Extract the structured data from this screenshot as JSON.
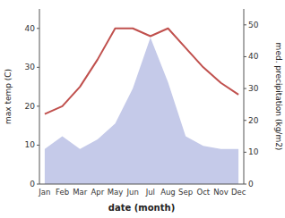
{
  "chart_data": {
    "type": "line",
    "xlabel": "date (month)",
    "ylabel": "max temp (C)",
    "y2label": "med. precipitation (kg/m2)",
    "categories": [
      "Jan",
      "Feb",
      "Mar",
      "Apr",
      "May",
      "Jun",
      "Jul",
      "Aug",
      "Sep",
      "Oct",
      "Nov",
      "Dec"
    ],
    "series": [
      {
        "type": "area",
        "axis": "y2",
        "color": "#c5cae9",
        "values": [
          11,
          15,
          11,
          14,
          19,
          30,
          46,
          32,
          15,
          12,
          11,
          11
        ]
      },
      {
        "type": "line",
        "color": "#c0504d",
        "values": [
          18,
          20,
          25,
          32,
          40,
          40,
          38,
          40,
          35,
          30,
          26,
          23
        ]
      }
    ],
    "ylim": [
      0,
      45
    ],
    "yticks": [
      0,
      10,
      20,
      30,
      40
    ],
    "y2lim": [
      0,
      55
    ],
    "y2ticks": [
      0,
      10,
      20,
      30,
      40,
      50
    ],
    "grid": false
  }
}
